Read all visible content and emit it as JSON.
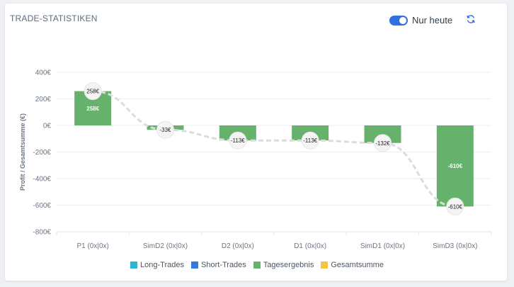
{
  "header": {
    "title": "TRADE-STATISTIKEN",
    "toggle_label": "Nur heute",
    "toggle_on": true
  },
  "colors": {
    "long": "#29b7d3",
    "short": "#3478e0",
    "day": "#66b16b",
    "total": "#f5c542",
    "line": "#dcdcdc",
    "toggle": "#2f6fe0"
  },
  "icons": {
    "refresh": "refresh-icon"
  },
  "legend": [
    {
      "label": "Long-Trades",
      "color": "#29b7d3"
    },
    {
      "label": "Short-Trades",
      "color": "#3478e0"
    },
    {
      "label": "Tagesergebnis",
      "color": "#66b16b"
    },
    {
      "label": "Gesamtsumme",
      "color": "#f5c542"
    }
  ],
  "chart_data": {
    "type": "bar",
    "ylabel": "Profit / Gesamtsumme (€)",
    "ylim": [
      -800,
      400
    ],
    "y_ticks": [
      400,
      200,
      0,
      -200,
      -400,
      -600,
      -800
    ],
    "y_tick_labels": [
      "400€",
      "200€",
      "0€",
      "-200€",
      "-400€",
      "-600€",
      "-800€"
    ],
    "categories": [
      "P1 (0x|0x)",
      "SimD2 (0x|0x)",
      "D2 (0x|0x)",
      "D1 (0x|0x)",
      "SimD1 (0x|0x)",
      "SimD3 (0x|0x)"
    ],
    "series": [
      {
        "name": "Tagesergebnis",
        "type": "bar",
        "values": [
          258,
          -33,
          -113,
          -113,
          -132,
          -610
        ],
        "labels": [
          "258€",
          "-33€",
          "-113€",
          "-113€",
          "-132€",
          "-610€"
        ]
      },
      {
        "name": "Gesamtsumme",
        "type": "line",
        "values": [
          258,
          -33,
          -113,
          -113,
          -132,
          -610
        ],
        "labels": [
          "258€",
          "-33€",
          "-113€",
          "-113€",
          "-132€",
          "-610€"
        ]
      }
    ],
    "grid": true,
    "legend_position": "bottom"
  }
}
